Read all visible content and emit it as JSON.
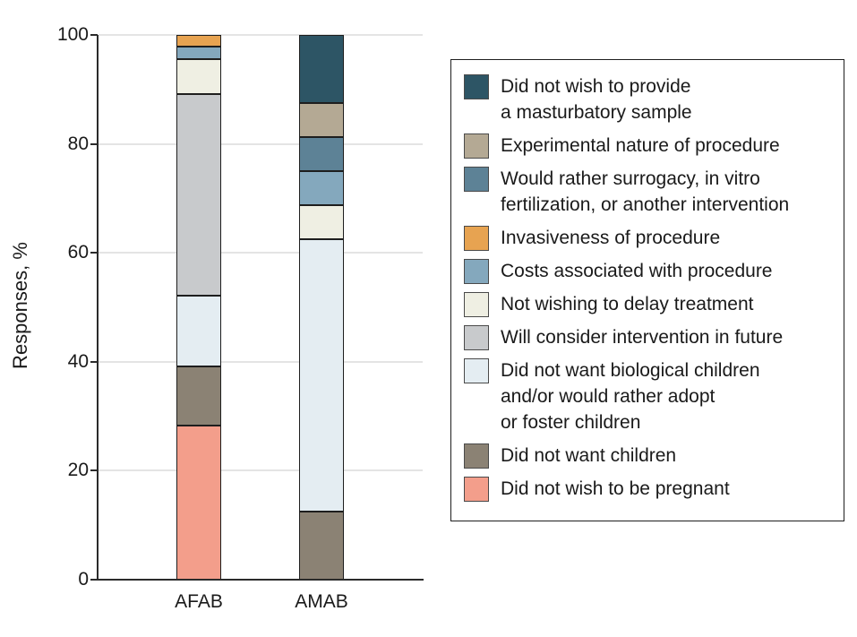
{
  "figure": {
    "ylabel": "Responses, %"
  },
  "chart_data": {
    "type": "bar",
    "stacked": true,
    "title": "",
    "xlabel": "",
    "ylabel": "Responses, %",
    "categories": [
      "AFAB",
      "AMAB"
    ],
    "ylim": [
      0,
      100
    ],
    "yticks": [
      0,
      20,
      40,
      60,
      80,
      100
    ],
    "grid": true,
    "legend_position": "right",
    "axis_color": "#2b2b2b",
    "gridline_color": "#e4e4e4",
    "segment_border_color": "#1e1e1e",
    "series_bottom_to_top": [
      {
        "name": "Did not wish to be pregnant",
        "color": "#f39e8b",
        "values": [
          28.3,
          0
        ]
      },
      {
        "name": "Did not want children",
        "color": "#8b8274",
        "values": [
          10.9,
          12.5
        ]
      },
      {
        "name": "Did not want biological children\nand/or would rather adopt\nor foster children",
        "color": "#e4edf2",
        "values": [
          13.0,
          50.0
        ]
      },
      {
        "name": "Will consider intervention in future",
        "color": "#c8cacc",
        "values": [
          36.9,
          0
        ]
      },
      {
        "name": "Not wishing to delay treatment",
        "color": "#efefe3",
        "values": [
          6.5,
          6.25
        ]
      },
      {
        "name": "Costs associated with procedure",
        "color": "#84a8bd",
        "values": [
          2.2,
          6.25
        ]
      },
      {
        "name": "Invasiveness of procedure",
        "color": "#e7a351",
        "values": [
          2.2,
          0
        ]
      },
      {
        "name": "Would rather surrogacy, in vitro\nfertilization, or another intervention",
        "color": "#5d8296",
        "values": [
          0,
          6.25
        ]
      },
      {
        "name": "Experimental nature of procedure",
        "color": "#b4a994",
        "values": [
          0,
          6.25
        ]
      },
      {
        "name": "Did not wish to provide\na masturbatory sample",
        "color": "#2d5565",
        "values": [
          0,
          12.5
        ]
      }
    ]
  }
}
